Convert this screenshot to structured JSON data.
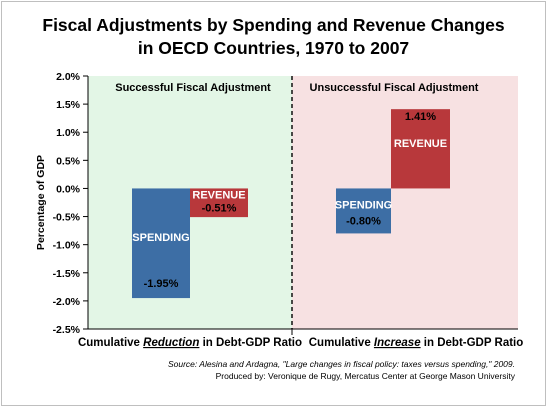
{
  "chart_data": {
    "type": "bar",
    "title_line1": "Fiscal Adjustments by Spending and Revenue Changes",
    "title_line2": "in OECD Countries, 1970 to 2007",
    "ylabel": "Percentage of GDP",
    "ylim": [
      -2.5,
      2.0
    ],
    "yticks": [
      2.0,
      1.5,
      1.0,
      0.5,
      0.0,
      -0.5,
      -1.0,
      -1.5,
      -2.0,
      -2.5
    ],
    "ytick_labels": [
      "2.0%",
      "1.5%",
      "1.0%",
      "0.5%",
      "0.0%",
      "-0.5%",
      "-1.0%",
      "-1.5%",
      "-2.0%",
      "-2.5%"
    ],
    "colors": {
      "spending": "#3d6ea5",
      "revenue": "#b8383b",
      "left_panel_bg": "#e3f6e6",
      "right_panel_bg": "#f7e1e2"
    },
    "panels": [
      {
        "header": "Successful Fiscal Adjustment",
        "xlabel_pre": "Cumulative ",
        "xlabel_em": "Reduction",
        "xlabel_post": " in Debt-GDP Ratio",
        "bars": [
          {
            "name": "SPENDING",
            "value": -1.95,
            "label": "-1.95%",
            "from": 0.0
          },
          {
            "name": "REVENUE",
            "value": -0.51,
            "label": "-0.51%",
            "from": 0.0
          }
        ]
      },
      {
        "header": "Unsuccessful Fiscal Adjustment",
        "xlabel_pre": "Cumulative ",
        "xlabel_em": "Increase",
        "xlabel_post": " in Debt-GDP Ratio",
        "bars": [
          {
            "name": "SPENDING",
            "value": -0.8,
            "label": "-0.80%",
            "from": 0.0
          },
          {
            "name": "REVENUE",
            "value": 1.41,
            "label": "1.41%",
            "from": 0.0
          }
        ]
      }
    ]
  },
  "source_line": "Source: Alesina and Ardagna, \"Large changes in fiscal policy: taxes versus spending,\" 2009.",
  "credit_line": "Produced by: Veronique de Rugy, Mercatus Center at George Mason University"
}
